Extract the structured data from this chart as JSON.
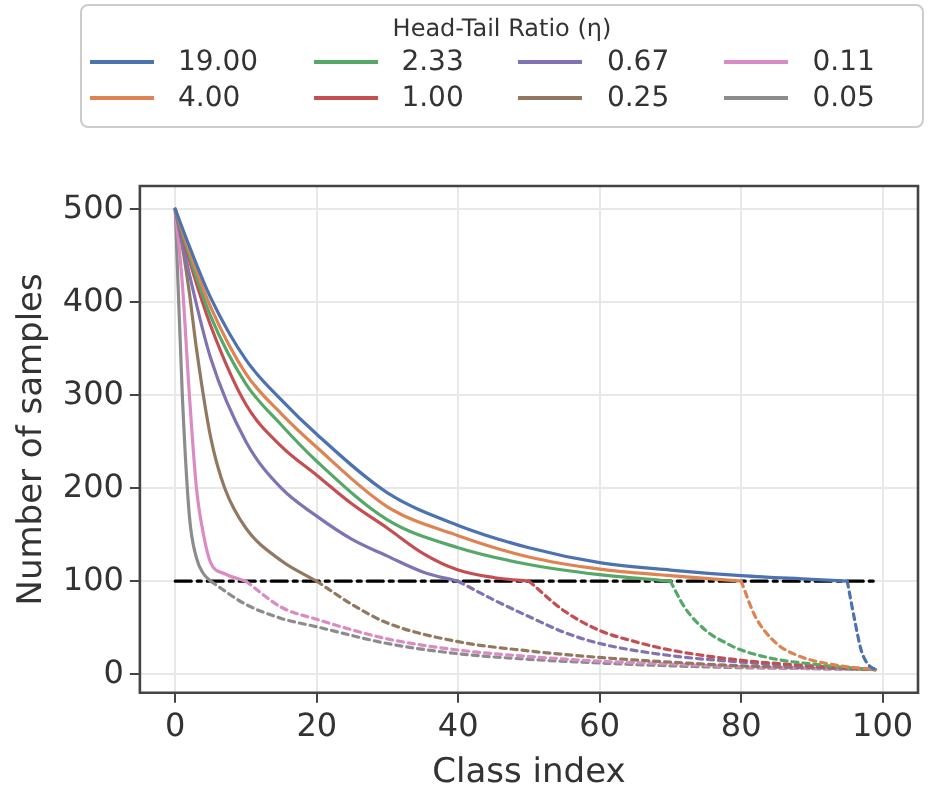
{
  "chart_data": {
    "type": "line",
    "xlabel": "Class index",
    "ylabel": "Number of samples",
    "legend_title": "Head-Tail Ratio (η)",
    "legend": "top",
    "grid": true,
    "marker": "none",
    "xlim": [
      -5,
      105
    ],
    "xticks": [
      0,
      20,
      40,
      60,
      80,
      100
    ],
    "ylim": [
      -20,
      525
    ],
    "yticks": [
      0,
      100,
      200,
      300,
      400,
      500
    ],
    "series": [
      {
        "name": "19.00",
        "color": "#4c72b0",
        "line_style": "solid",
        "x": [
          0,
          2,
          5,
          10,
          15,
          20,
          30,
          40,
          50,
          60,
          70,
          80,
          90,
          95
        ],
        "values": [
          500,
          460,
          405,
          338,
          295,
          258,
          195,
          160,
          136,
          120,
          112,
          106,
          102,
          100
        ]
      },
      {
        "name": "4.00",
        "color": "#dd8452",
        "line_style": "solid",
        "x": [
          0,
          2,
          5,
          10,
          15,
          20,
          30,
          40,
          50,
          60,
          70,
          80
        ],
        "values": [
          500,
          455,
          395,
          323,
          280,
          244,
          180,
          149,
          126,
          113,
          106,
          100
        ]
      },
      {
        "name": "2.33",
        "color": "#55a868",
        "line_style": "solid",
        "x": [
          0,
          2,
          5,
          10,
          15,
          20,
          30,
          40,
          50,
          60,
          70
        ],
        "values": [
          500,
          450,
          385,
          312,
          268,
          229,
          166,
          136,
          118,
          107,
          100
        ]
      },
      {
        "name": "1.00",
        "color": "#c44e52",
        "line_style": "solid",
        "x": [
          0,
          2,
          5,
          10,
          15,
          20,
          25,
          30,
          35,
          40,
          45,
          50
        ],
        "values": [
          500,
          445,
          375,
          290,
          245,
          214,
          183,
          157,
          130,
          112,
          104,
          100
        ]
      },
      {
        "name": "0.67",
        "color": "#8172b3",
        "line_style": "solid",
        "x": [
          0,
          2,
          5,
          10,
          15,
          20,
          25,
          30,
          35,
          40
        ],
        "values": [
          500,
          430,
          340,
          250,
          200,
          170,
          145,
          127,
          110,
          100
        ]
      },
      {
        "name": "0.25",
        "color": "#937860",
        "line_style": "solid",
        "x": [
          0,
          1,
          2,
          3,
          5,
          7,
          10,
          15,
          20
        ],
        "values": [
          500,
          460,
          410,
          350,
          255,
          200,
          157,
          122,
          100
        ]
      },
      {
        "name": "0.11",
        "color": "#da8bc3",
        "line_style": "solid",
        "x": [
          0,
          1,
          2,
          3,
          4,
          5,
          7,
          10
        ],
        "values": [
          500,
          420,
          300,
          200,
          150,
          120,
          108,
          100
        ]
      },
      {
        "name": "0.05",
        "color": "#8c8c8c",
        "line_style": "solid",
        "x": [
          0,
          1,
          2,
          3,
          4,
          5
        ],
        "values": [
          500,
          300,
          170,
          125,
          108,
          100
        ]
      },
      {
        "color": "#4c72b0",
        "line_style": "dashed",
        "x": [
          95,
          96,
          97,
          98,
          99
        ],
        "values": [
          100,
          60,
          25,
          10,
          5
        ]
      },
      {
        "color": "#dd8452",
        "line_style": "dashed",
        "x": [
          80,
          82,
          85,
          88,
          90,
          95,
          99
        ],
        "values": [
          100,
          62,
          33,
          20,
          15,
          8,
          5
        ]
      },
      {
        "color": "#55a868",
        "line_style": "dashed",
        "x": [
          70,
          72,
          75,
          78,
          80,
          85,
          90,
          95,
          99
        ],
        "values": [
          100,
          72,
          47,
          33,
          26,
          16,
          11,
          7,
          5
        ]
      },
      {
        "color": "#c44e52",
        "line_style": "dashed",
        "x": [
          50,
          55,
          60,
          65,
          70,
          80,
          90,
          99
        ],
        "values": [
          100,
          68,
          47,
          35,
          26,
          15,
          9,
          5
        ]
      },
      {
        "color": "#8172b3",
        "line_style": "dashed",
        "x": [
          40,
          45,
          50,
          55,
          60,
          70,
          80,
          90,
          99
        ],
        "values": [
          100,
          80,
          62,
          45,
          33,
          20,
          13,
          8,
          5
        ]
      },
      {
        "color": "#937860",
        "line_style": "dashed",
        "x": [
          20,
          25,
          30,
          40,
          50,
          60,
          70,
          80,
          90,
          99
        ],
        "values": [
          100,
          75,
          55,
          35,
          25,
          18,
          13,
          9,
          7,
          5
        ]
      },
      {
        "color": "#da8bc3",
        "line_style": "dashed",
        "x": [
          10,
          15,
          20,
          30,
          40,
          50,
          60,
          70,
          80,
          90,
          99
        ],
        "values": [
          100,
          72,
          59,
          38,
          26,
          19,
          14,
          11,
          8,
          6,
          5
        ]
      },
      {
        "color": "#8c8c8c",
        "line_style": "dashed",
        "x": [
          5,
          10,
          15,
          20,
          30,
          40,
          50,
          60,
          70,
          80,
          90,
          99
        ],
        "values": [
          100,
          75,
          60,
          51,
          33,
          22,
          16,
          12,
          9,
          7,
          6,
          5
        ]
      },
      {
        "color": "#000000",
        "line_style": "dashdot",
        "x": [
          0,
          99
        ],
        "values": [
          100,
          100
        ]
      }
    ]
  }
}
